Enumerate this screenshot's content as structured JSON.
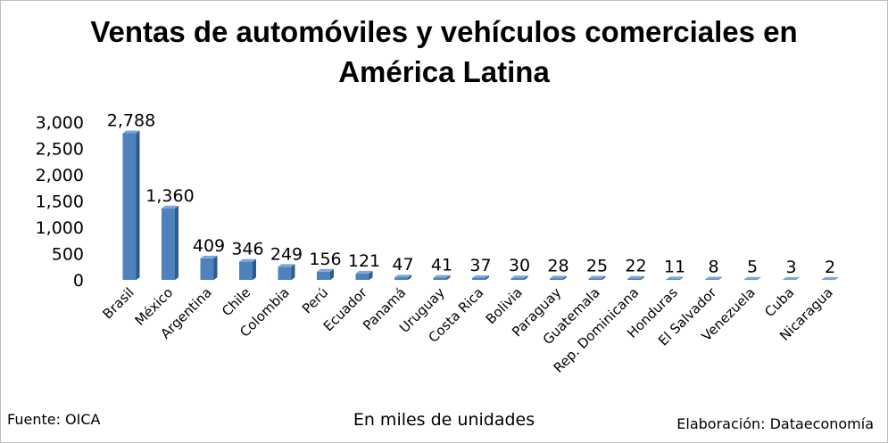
{
  "chart_data": {
    "type": "bar",
    "title_line1": "Ventas de automóviles y vehículos comerciales en",
    "title_line2": "América Latina",
    "xlabel": "En miles de unidades",
    "ylim": [
      0,
      3000
    ],
    "yticks": [
      "0",
      "500",
      "1,000",
      "1,500",
      "2,000",
      "2,500",
      "3,000"
    ],
    "categories": [
      "Brasil",
      "México",
      "Argentina",
      "Chile",
      "Colombia",
      "Perú",
      "Ecuador",
      "Panamá",
      "Uruguay",
      "Costa Rica",
      "Bolivia",
      "Paraguay",
      "Guatemala",
      "Rep. Dominicana",
      "Honduras",
      "El Salvador",
      "Venezuela",
      "Cuba",
      "Nicaragua"
    ],
    "values": [
      2788,
      1360,
      409,
      346,
      249,
      156,
      121,
      47,
      41,
      37,
      30,
      28,
      25,
      22,
      11,
      8,
      5,
      3,
      2
    ],
    "value_labels": [
      "2,788",
      "1,360",
      "409",
      "346",
      "249",
      "156",
      "121",
      "47",
      "41",
      "37",
      "30",
      "28",
      "25",
      "22",
      "11",
      "8",
      "5",
      "3",
      "2"
    ],
    "bar_color": "#4f81bd",
    "bar_side_color": "#2f5a8c",
    "bar_top_color": "#7ea6d8",
    "grid": false,
    "legend": "none"
  },
  "footer": {
    "source": "Fuente: OICA",
    "credit": "Elaboración: Dataeconomía"
  }
}
